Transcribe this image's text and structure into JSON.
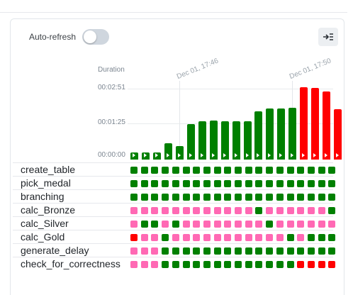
{
  "header": {
    "autorefresh_label": "Auto-refresh",
    "autorefresh_on": false
  },
  "expand_button_icon": "expand-right-icon",
  "chart_data": {
    "type": "bar",
    "title": "",
    "ylabel": "Duration",
    "ytick_labels": [
      "00:00:00",
      "00:01:25",
      "00:02:51"
    ],
    "ylim_seconds": [
      0,
      171
    ],
    "date_labels": [
      "Dec 01, 17:46",
      "Dec 01, 17:50"
    ],
    "values_seconds": [
      17,
      17,
      17,
      40,
      32,
      86,
      93,
      95,
      93,
      93,
      93,
      117,
      124,
      124,
      126,
      177,
      174,
      165,
      122
    ],
    "states": [
      "success",
      "success",
      "success",
      "success",
      "success",
      "success",
      "success",
      "success",
      "success",
      "success",
      "success",
      "success",
      "success",
      "success",
      "success",
      "failed",
      "failed",
      "failed",
      "failed"
    ]
  },
  "colors": {
    "success": "#008000",
    "failed": "#ff0000",
    "upstream_failed": "#ff69b4"
  },
  "tasks": [
    {
      "name": "create_table",
      "states": [
        "s",
        "s",
        "s",
        "s",
        "s",
        "s",
        "s",
        "s",
        "s",
        "s",
        "s",
        "s",
        "s",
        "s",
        "s",
        "s",
        "s",
        "s",
        "s",
        "s"
      ]
    },
    {
      "name": "pick_medal",
      "states": [
        "s",
        "s",
        "s",
        "s",
        "s",
        "s",
        "s",
        "s",
        "s",
        "s",
        "s",
        "s",
        "s",
        "s",
        "s",
        "s",
        "s",
        "s",
        "s",
        "s"
      ]
    },
    {
      "name": "branching",
      "states": [
        "s",
        "s",
        "s",
        "s",
        "s",
        "s",
        "s",
        "s",
        "s",
        "s",
        "s",
        "s",
        "s",
        "s",
        "s",
        "s",
        "s",
        "s",
        "s",
        "s"
      ]
    },
    {
      "name": "calc_Bronze",
      "states": [
        "u",
        "u",
        "u",
        "u",
        "u",
        "u",
        "u",
        "u",
        "u",
        "u",
        "u",
        "u",
        "s",
        "u",
        "u",
        "u",
        "u",
        "u",
        "u",
        "s"
      ]
    },
    {
      "name": "calc_Silver",
      "states": [
        "u",
        "s",
        "s",
        "u",
        "s",
        "u",
        "u",
        "u",
        "u",
        "u",
        "u",
        "u",
        "u",
        "s",
        "u",
        "u",
        "u",
        "u",
        "u",
        "u"
      ]
    },
    {
      "name": "calc_Gold",
      "states": [
        "f",
        "u",
        "u",
        "s",
        "u",
        "u",
        "u",
        "u",
        "u",
        "u",
        "u",
        "u",
        "u",
        "u",
        "u",
        "s",
        "u",
        "s",
        "s",
        "s"
      ]
    },
    {
      "name": "generate_delay",
      "states": [
        "u",
        "u",
        "u",
        "s",
        "s",
        "s",
        "s",
        "s",
        "s",
        "s",
        "s",
        "s",
        "s",
        "s",
        "s",
        "s",
        "s",
        "s",
        "s",
        "s"
      ]
    },
    {
      "name": "check_for_correctness",
      "states": [
        "u",
        "u",
        "u",
        "s",
        "s",
        "s",
        "s",
        "s",
        "s",
        "s",
        "s",
        "s",
        "s",
        "s",
        "s",
        "s",
        "f",
        "f",
        "f",
        "f"
      ]
    }
  ]
}
